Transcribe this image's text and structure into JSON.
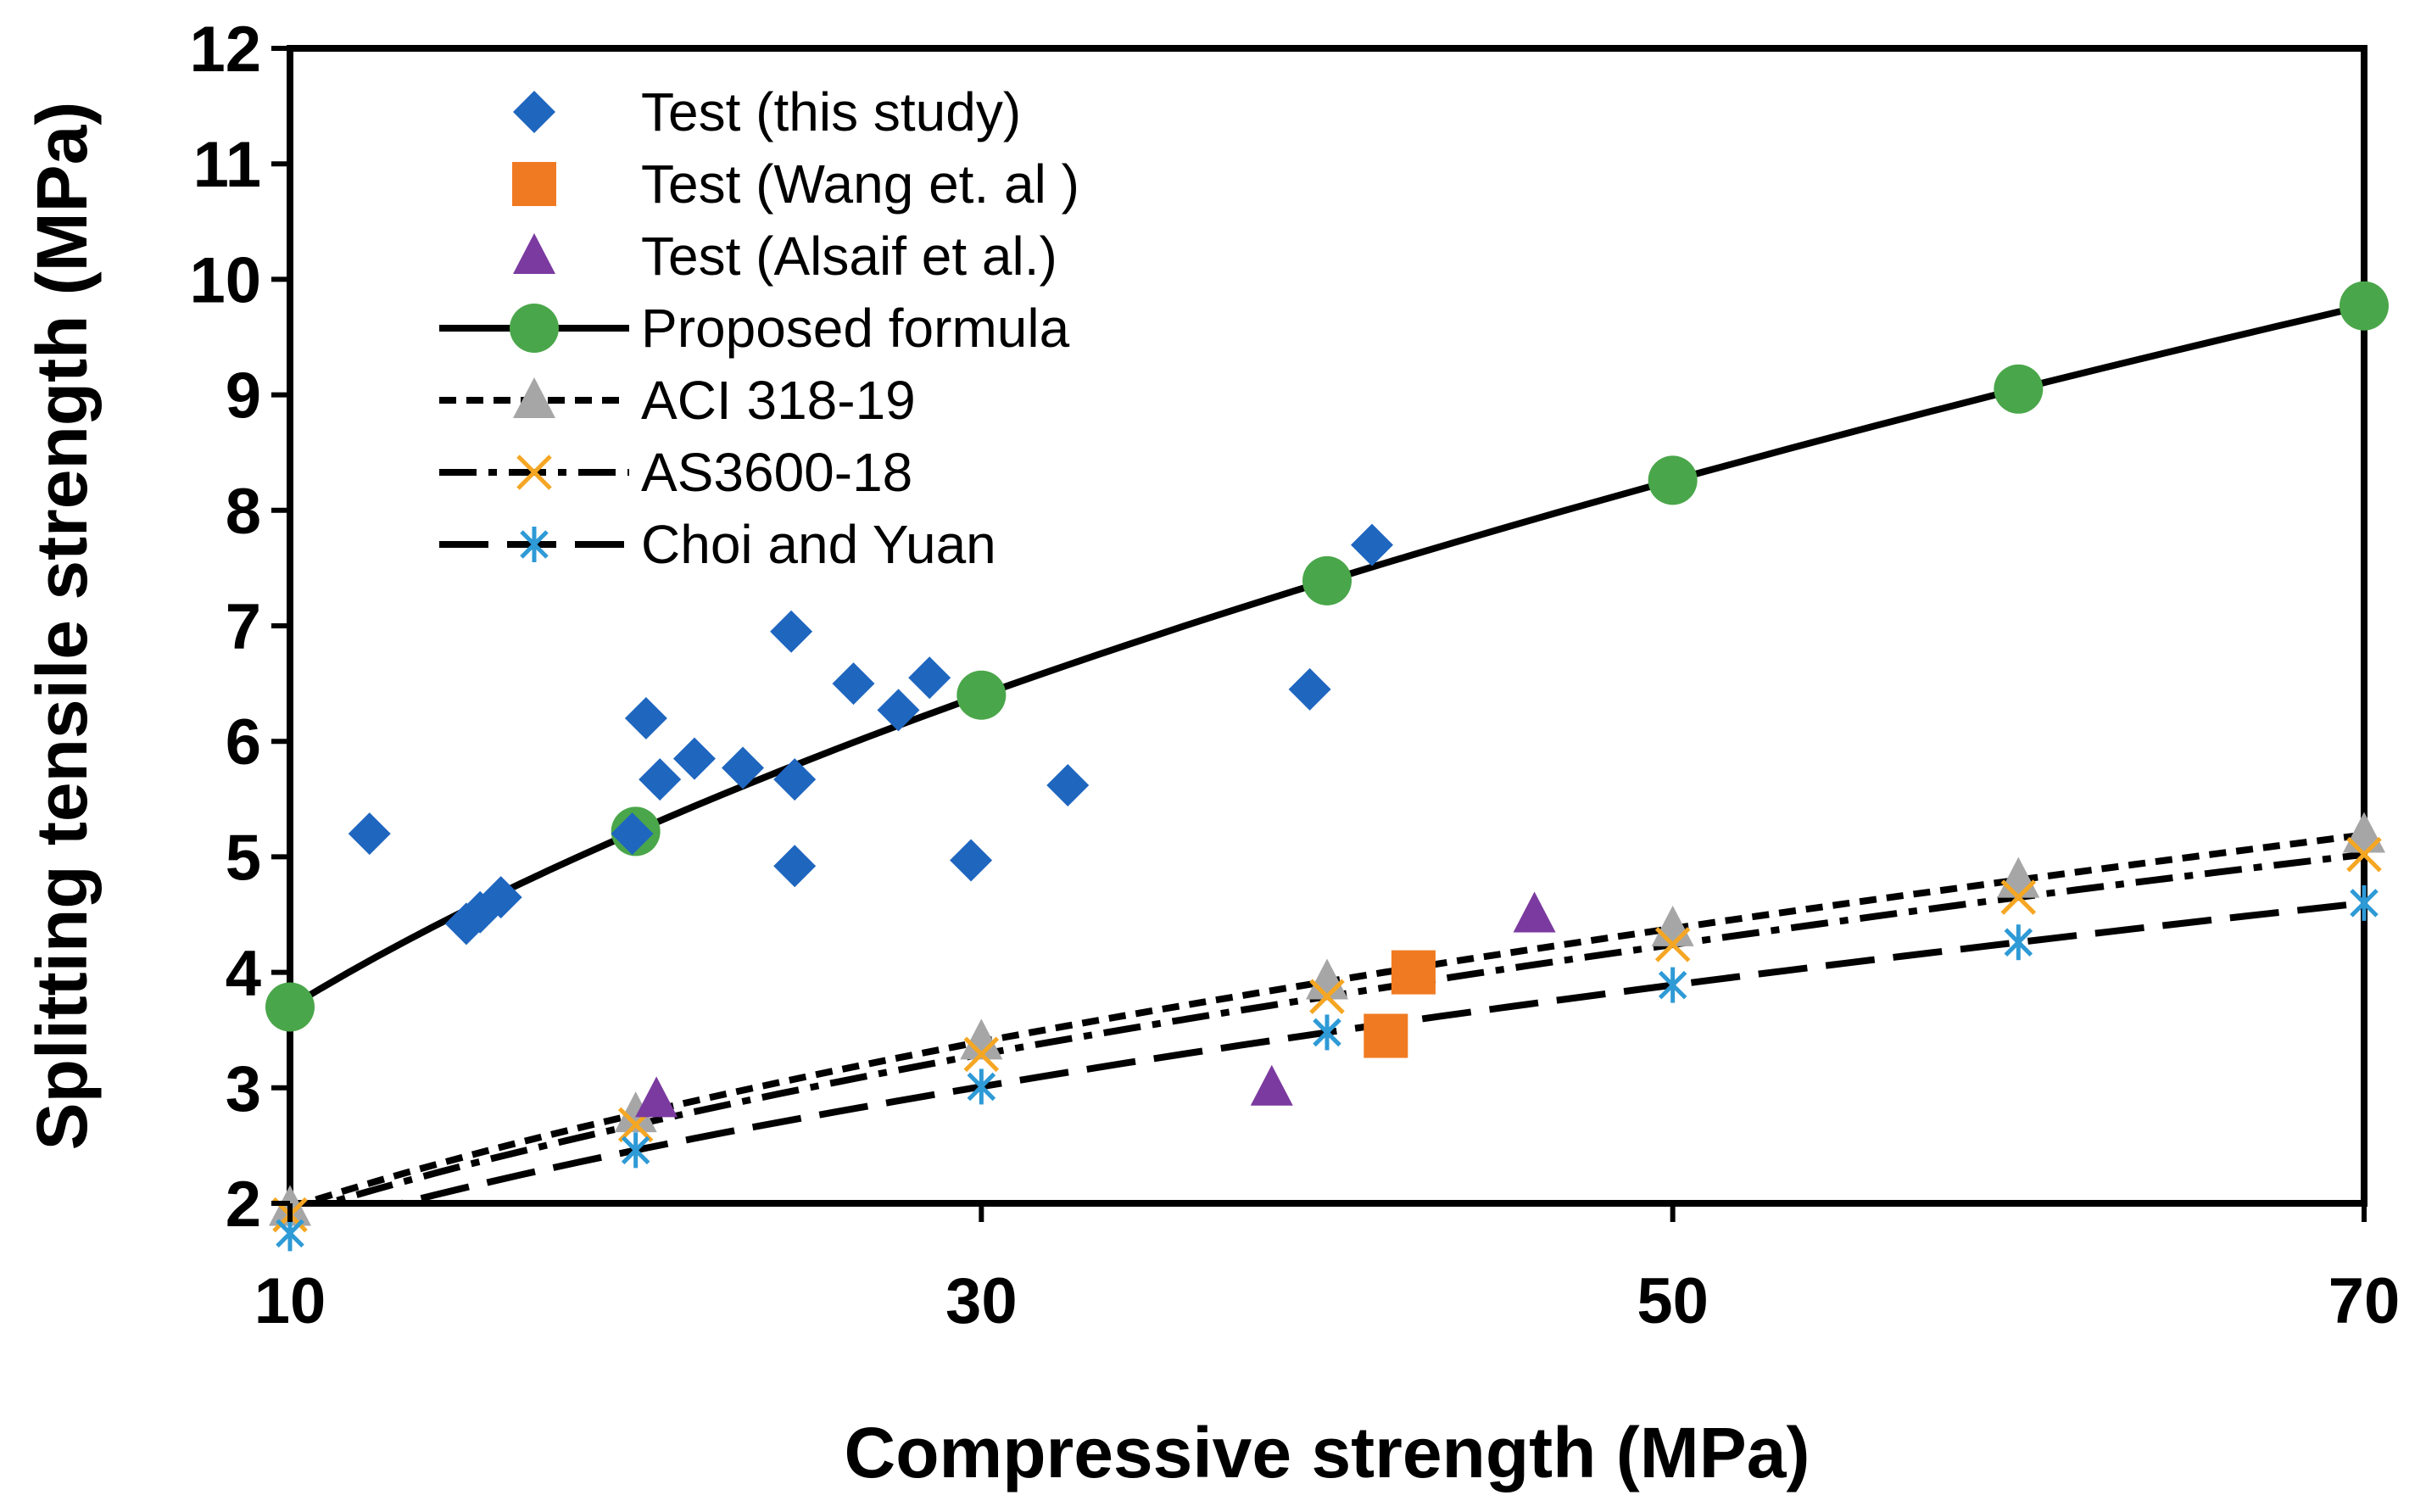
{
  "chart_data": {
    "type": "scatter",
    "xlabel": "Compressive strength (MPa)",
    "ylabel": "Splitting tensile strength (MPa)",
    "xlim": [
      10,
      70
    ],
    "ylim": [
      2,
      12
    ],
    "xticks": [
      "10",
      "30",
      "50",
      "70"
    ],
    "yticks": [
      "2",
      "3",
      "4",
      "5",
      "6",
      "7",
      "8",
      "9",
      "10",
      "11",
      "12"
    ],
    "grid": false,
    "legend_position": "top-left",
    "series": [
      {
        "name": "Test (this study)",
        "kind": "points",
        "marker": "diamond",
        "color": "#1f66bf",
        "x": [
          12.3,
          15.1,
          15.5,
          16.1,
          19.9,
          20.3,
          20.7,
          21.7,
          23.1,
          24.5,
          24.6,
          24.6,
          26.3,
          27.6,
          28.5,
          29.7,
          32.5,
          39.5,
          41.3
        ],
        "y": [
          5.2,
          4.42,
          4.52,
          4.65,
          5.2,
          6.2,
          5.67,
          5.85,
          5.77,
          6.95,
          5.67,
          4.92,
          6.5,
          6.27,
          6.55,
          4.97,
          5.62,
          6.45,
          7.7
        ]
      },
      {
        "name": "Test (Wang et. al )",
        "kind": "points",
        "marker": "square",
        "color": "#f07a22",
        "x": [
          42.5,
          41.7
        ],
        "y": [
          4.0,
          3.45
        ]
      },
      {
        "name": "Test (Alsaif et al.)",
        "kind": "points",
        "marker": "triangle",
        "color": "#7b3aa0",
        "x": [
          20.6,
          38.4,
          46.0
        ],
        "y": [
          2.9,
          3.0,
          4.5
        ]
      },
      {
        "name": "Proposed formula",
        "kind": "line",
        "dash": "solid",
        "marker": "circle",
        "color": "#4aa64a",
        "x": [
          10,
          20,
          30,
          40,
          50,
          60,
          70
        ],
        "y": [
          3.7,
          5.22,
          6.4,
          7.39,
          8.26,
          9.05,
          9.77
        ]
      },
      {
        "name": "ACI 318-19",
        "kind": "line",
        "dash": "short-dash",
        "marker": "triangle",
        "color": "#a6a6a6",
        "x": [
          10,
          20,
          30,
          40,
          50,
          60,
          70
        ],
        "y": [
          1.96,
          2.77,
          3.4,
          3.92,
          4.38,
          4.8,
          5.19
        ]
      },
      {
        "name": "AS3600-18",
        "kind": "line",
        "dash": "dash-dot",
        "marker": "x",
        "color": "#f5a623",
        "x": [
          10,
          20,
          30,
          40,
          50,
          60,
          70
        ],
        "y": [
          1.9,
          2.68,
          3.29,
          3.79,
          4.24,
          4.65,
          5.02
        ]
      },
      {
        "name": "Choi and Yuan",
        "kind": "line",
        "dash": "long-dash",
        "marker": "asterisk",
        "color": "#2e9ad6",
        "x": [
          10,
          20,
          30,
          40,
          50,
          60,
          70
        ],
        "y": [
          1.74,
          2.46,
          3.01,
          3.48,
          3.89,
          4.26,
          4.6
        ]
      }
    ]
  }
}
